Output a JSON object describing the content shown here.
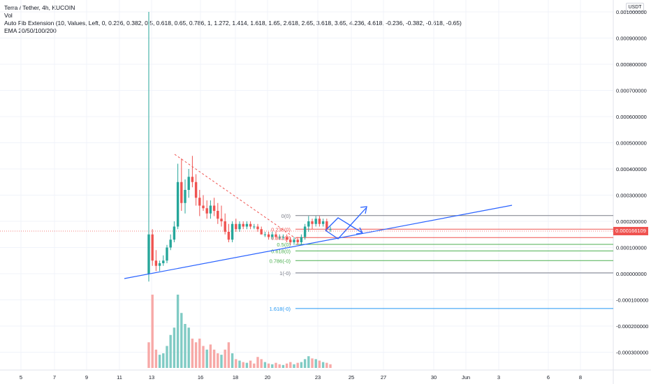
{
  "legend": {
    "symbol": "Terra / Tether, 4h, KUCOIN",
    "volume": "Vol",
    "fib": "Auto Fib Extension (10, Values, Left, 0, 0.236, 0.382, 0.5, 0.618, 0.65, 0.786, 1, 1.272, 1.414, 1.618, 1.65, 2.618, 2.65, 3.618, 3.65, 4.236, 4.618, -0.236, -0.382, -0.618, -0.65)",
    "ema": "EMA 20/50/100/200"
  },
  "unit_label": "USDT",
  "last_price": "0.000166109",
  "colors": {
    "up": "#26a69a",
    "down": "#ef5350",
    "trendline": "#2962ff",
    "vol_up": "#80cbc4",
    "vol_down": "#f7a9a7"
  },
  "chart_data": {
    "type": "candlestick",
    "y_axis": {
      "labels": [
        "0.001000000",
        "0.000900000",
        "0.000800000",
        "0.000700000",
        "0.000600000",
        "0.000500000",
        "0.000400000",
        "0.000300000",
        "0.000200000",
        "0.000100000",
        "0.000000000",
        "-0.000100000",
        "-0.000200000",
        "-0.000300000"
      ],
      "values": [
        0.001,
        0.0009,
        0.0008,
        0.0007,
        0.0006,
        0.0005,
        0.0004,
        0.0003,
        0.0002,
        0.0001,
        0,
        -0.0001,
        -0.0002,
        -0.0003
      ]
    },
    "x_axis": {
      "labels": [
        "5",
        "7",
        "9",
        "11",
        "13",
        "16",
        "18",
        "20",
        "23",
        "25",
        "27",
        "30",
        "Jun",
        "3",
        "6",
        "8"
      ]
    },
    "fib_levels": [
      {
        "label": "0(0)",
        "value": 0.000222,
        "color": "#787b86"
      },
      {
        "label": "0.236(0)",
        "value": 0.00017,
        "color": "#ef5350"
      },
      {
        "label": "0.382(0)",
        "value": 0.000138,
        "color": "#ef5350"
      },
      {
        "label": "0.5(0)",
        "value": 0.000112,
        "color": "#4caf50"
      },
      {
        "label": "0.618(0)",
        "value": 8.7e-05,
        "color": "#4caf50"
      },
      {
        "label": "0.786(-0)",
        "value": 5e-05,
        "color": "#4caf50"
      },
      {
        "label": "1(-0)",
        "value": 3e-06,
        "color": "#787b86"
      },
      {
        "label": "1.618(-0)",
        "value": -0.000133,
        "color": "#2196f3"
      }
    ],
    "trend_dates_note": "",
    "candles": [
      {
        "o": 0.0,
        "h": 0.001,
        "l": -3e-05,
        "c": 0.00015
      },
      {
        "o": 0.00015,
        "h": 0.00017,
        "l": 3e-05,
        "c": 5e-05
      },
      {
        "o": 5e-05,
        "h": 9e-05,
        "l": 1e-05,
        "c": 3e-05
      },
      {
        "o": 3e-05,
        "h": 5e-05,
        "l": 1e-05,
        "c": 4e-05
      },
      {
        "o": 4e-05,
        "h": 7e-05,
        "l": 3e-05,
        "c": 5e-05
      },
      {
        "o": 5e-05,
        "h": 0.00011,
        "l": 4e-05,
        "c": 0.0001
      },
      {
        "o": 0.0001,
        "h": 0.00015,
        "l": 9e-05,
        "c": 0.00013
      },
      {
        "o": 0.00013,
        "h": 0.0002,
        "l": 0.00012,
        "c": 0.00018
      },
      {
        "o": 0.00018,
        "h": 0.00042,
        "l": 0.00017,
        "c": 0.00035
      },
      {
        "o": 0.00035,
        "h": 0.00044,
        "l": 0.00024,
        "c": 0.00027
      },
      {
        "o": 0.00027,
        "h": 0.00036,
        "l": 0.00023,
        "c": 0.00032
      },
      {
        "o": 0.00032,
        "h": 0.0004,
        "l": 0.00029,
        "c": 0.00037
      },
      {
        "o": 0.00037,
        "h": 0.00045,
        "l": 0.00033,
        "c": 0.00035
      },
      {
        "o": 0.00035,
        "h": 0.00038,
        "l": 0.00026,
        "c": 0.00029
      },
      {
        "o": 0.00029,
        "h": 0.00032,
        "l": 0.00022,
        "c": 0.00026
      },
      {
        "o": 0.00026,
        "h": 0.0003,
        "l": 0.00024,
        "c": 0.00025
      },
      {
        "o": 0.00025,
        "h": 0.00028,
        "l": 0.00021,
        "c": 0.00023
      },
      {
        "o": 0.00023,
        "h": 0.00028,
        "l": 0.00021,
        "c": 0.00026
      },
      {
        "o": 0.00026,
        "h": 0.00029,
        "l": 0.00022,
        "c": 0.00024
      },
      {
        "o": 0.00024,
        "h": 0.00027,
        "l": 0.00019,
        "c": 0.00021
      },
      {
        "o": 0.00021,
        "h": 0.00026,
        "l": 0.00018,
        "c": 0.0002
      },
      {
        "o": 0.0002,
        "h": 0.00023,
        "l": 0.00015,
        "c": 0.00016
      },
      {
        "o": 0.00016,
        "h": 0.00019,
        "l": 0.00012,
        "c": 0.00013
      },
      {
        "o": 0.00013,
        "h": 0.0002,
        "l": 0.00012,
        "c": 0.00019
      },
      {
        "o": 0.00019,
        "h": 0.00021,
        "l": 0.00016,
        "c": 0.00017
      },
      {
        "o": 0.00017,
        "h": 0.0002,
        "l": 0.00016,
        "c": 0.00019
      },
      {
        "o": 0.00019,
        "h": 0.0002,
        "l": 0.00017,
        "c": 0.00018
      },
      {
        "o": 0.00018,
        "h": 0.0002,
        "l": 0.00017,
        "c": 0.00019
      },
      {
        "o": 0.00019,
        "h": 0.0002,
        "l": 0.00017,
        "c": 0.00018
      },
      {
        "o": 0.00018,
        "h": 0.00019,
        "l": 0.00017,
        "c": 0.00018
      },
      {
        "o": 0.00018,
        "h": 0.00019,
        "l": 0.00016,
        "c": 0.00017
      },
      {
        "o": 0.00017,
        "h": 0.00018,
        "l": 0.00015,
        "c": 0.00015
      },
      {
        "o": 0.00015,
        "h": 0.00016,
        "l": 0.00014,
        "c": 0.00015
      },
      {
        "o": 0.00015,
        "h": 0.00016,
        "l": 0.00013,
        "c": 0.00014
      },
      {
        "o": 0.00014,
        "h": 0.00016,
        "l": 0.00013,
        "c": 0.00015
      },
      {
        "o": 0.00015,
        "h": 0.00016,
        "l": 0.00013,
        "c": 0.00014
      },
      {
        "o": 0.00014,
        "h": 0.00015,
        "l": 0.00013,
        "c": 0.00014
      },
      {
        "o": 0.00014,
        "h": 0.00015,
        "l": 0.00013,
        "c": 0.00014
      },
      {
        "o": 0.00014,
        "h": 0.00015,
        "l": 0.00012,
        "c": 0.00013
      },
      {
        "o": 0.00013,
        "h": 0.00014,
        "l": 0.00011,
        "c": 0.00012
      },
      {
        "o": 0.00012,
        "h": 0.00014,
        "l": 0.00011,
        "c": 0.00013
      },
      {
        "o": 0.00013,
        "h": 0.00014,
        "l": 0.00011,
        "c": 0.00012
      },
      {
        "o": 0.00012,
        "h": 0.00015,
        "l": 0.00011,
        "c": 0.00014
      },
      {
        "o": 0.00014,
        "h": 0.00019,
        "l": 0.00013,
        "c": 0.00018
      },
      {
        "o": 0.00018,
        "h": 0.00022,
        "l": 0.00016,
        "c": 0.0002
      },
      {
        "o": 0.0002,
        "h": 0.00021,
        "l": 0.00017,
        "c": 0.00019
      },
      {
        "o": 0.00019,
        "h": 0.00022,
        "l": 0.00018,
        "c": 0.00021
      },
      {
        "o": 0.00021,
        "h": 0.00022,
        "l": 0.00018,
        "c": 0.00019
      },
      {
        "o": 0.00019,
        "h": 0.00021,
        "l": 0.00018,
        "c": 0.0002
      },
      {
        "o": 0.0002,
        "h": 0.00021,
        "l": 0.00016,
        "c": 0.00017
      },
      {
        "o": 0.00017,
        "h": 0.00018,
        "l": 0.00016,
        "c": 0.00017
      }
    ],
    "volumes": [
      {
        "v": 0.35,
        "up": false
      },
      {
        "v": 1.0,
        "up": false
      },
      {
        "v": 0.25,
        "up": false
      },
      {
        "v": 0.18,
        "up": true
      },
      {
        "v": 0.2,
        "up": true
      },
      {
        "v": 0.3,
        "up": true
      },
      {
        "v": 0.45,
        "up": true
      },
      {
        "v": 0.55,
        "up": true
      },
      {
        "v": 1.0,
        "up": true
      },
      {
        "v": 0.75,
        "up": true
      },
      {
        "v": 0.6,
        "up": true
      },
      {
        "v": 0.55,
        "up": true
      },
      {
        "v": 0.4,
        "up": false
      },
      {
        "v": 0.35,
        "up": false
      },
      {
        "v": 0.4,
        "up": false
      },
      {
        "v": 0.3,
        "up": false
      },
      {
        "v": 0.25,
        "up": true
      },
      {
        "v": 0.32,
        "up": false
      },
      {
        "v": 0.25,
        "up": false
      },
      {
        "v": 0.2,
        "up": false
      },
      {
        "v": 0.18,
        "up": true
      },
      {
        "v": 0.25,
        "up": false
      },
      {
        "v": 0.35,
        "up": false
      },
      {
        "v": 0.2,
        "up": true
      },
      {
        "v": 0.12,
        "up": false
      },
      {
        "v": 0.1,
        "up": true
      },
      {
        "v": 0.08,
        "up": false
      },
      {
        "v": 0.07,
        "up": true
      },
      {
        "v": 0.1,
        "up": false
      },
      {
        "v": 0.06,
        "up": false
      },
      {
        "v": 0.15,
        "up": false
      },
      {
        "v": 0.12,
        "up": false
      },
      {
        "v": 0.08,
        "up": true
      },
      {
        "v": 0.06,
        "up": false
      },
      {
        "v": 0.05,
        "up": true
      },
      {
        "v": 0.07,
        "up": false
      },
      {
        "v": 0.05,
        "up": false
      },
      {
        "v": 0.04,
        "up": true
      },
      {
        "v": 0.06,
        "up": false
      },
      {
        "v": 0.08,
        "up": false
      },
      {
        "v": 0.05,
        "up": true
      },
      {
        "v": 0.07,
        "up": false
      },
      {
        "v": 0.08,
        "up": true
      },
      {
        "v": 0.12,
        "up": true
      },
      {
        "v": 0.16,
        "up": true
      },
      {
        "v": 0.13,
        "up": false
      },
      {
        "v": 0.12,
        "up": true
      },
      {
        "v": 0.1,
        "up": false
      },
      {
        "v": 0.08,
        "up": true
      },
      {
        "v": 0.07,
        "up": false
      },
      {
        "v": 0.05,
        "up": false
      }
    ]
  }
}
